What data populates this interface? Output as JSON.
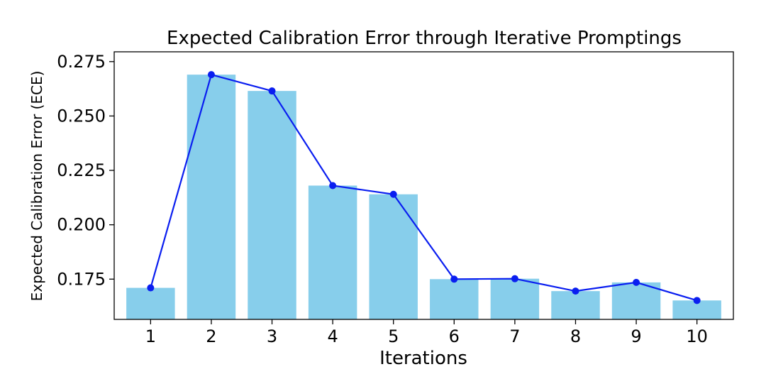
{
  "chart_data": {
    "type": "bar",
    "title": "Expected Calibration Error through Iterative Promptings",
    "xlabel": "Iterations",
    "ylabel": "Expected Calibration Error (ECE)",
    "categories": [
      "1",
      "2",
      "3",
      "4",
      "5",
      "6",
      "7",
      "8",
      "9",
      "10"
    ],
    "values": [
      0.171,
      0.269,
      0.2615,
      0.218,
      0.214,
      0.175,
      0.1752,
      0.1695,
      0.1735,
      0.1652
    ],
    "line_values": [
      0.171,
      0.269,
      0.2615,
      0.218,
      0.214,
      0.175,
      0.1752,
      0.1695,
      0.1735,
      0.1652
    ],
    "yticks": [
      "0.175",
      "0.200",
      "0.225",
      "0.250",
      "0.275"
    ],
    "ylim": [
      0.1565,
      0.2795
    ],
    "grid": false,
    "colors": {
      "bar": "#87ceeb",
      "line": "#0a1ef0",
      "marker": "#0a1ef0",
      "axis": "#000000"
    }
  }
}
